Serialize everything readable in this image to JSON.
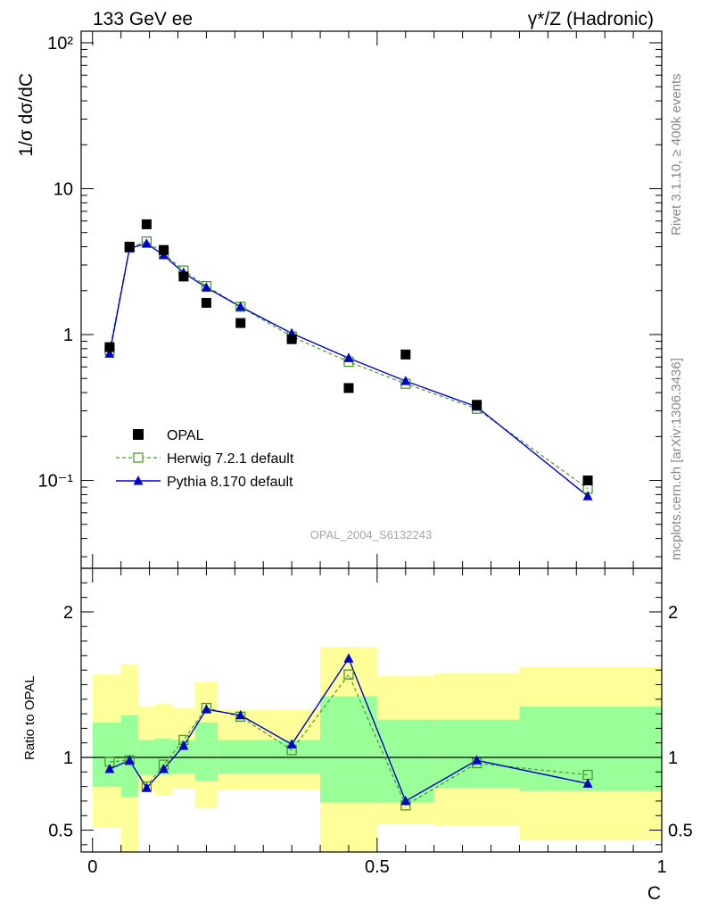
{
  "header": {
    "left": "133 GeV ee",
    "right": "γ*/Z (Hadronic)"
  },
  "side_text": {
    "rivet": "Rivet 3.1.10, ≥ 400k events",
    "mcplots": "mcplots.cern.ch [arXiv:1306.3436]"
  },
  "watermark": "OPAL_2004_S6132243",
  "colors": {
    "data": "#000000",
    "herwig": "#4a9a2a",
    "pythia": "#0000cc",
    "band_outer": "#ffff99",
    "band_inner": "#99ff99"
  },
  "chart_data": [
    {
      "type": "scatter",
      "panel": "main",
      "ylabel": "1/σ dσ/dC",
      "yscale": "log",
      "ylim": [
        0.025,
        120
      ],
      "xlim": [
        -0.02,
        1.0
      ],
      "ytick_labels": [
        "10⁻¹",
        "1",
        "10",
        "10²"
      ],
      "legend": {
        "placement": "bottom-left",
        "entries": [
          "OPAL",
          "Herwig 7.2.1 default",
          "Pythia 8.170 default"
        ]
      },
      "series": [
        {
          "name": "OPAL",
          "style": "markers",
          "x": [
            0.03,
            0.065,
            0.095,
            0.125,
            0.16,
            0.2,
            0.26,
            0.35,
            0.45,
            0.55,
            0.675,
            0.87
          ],
          "y": [
            0.82,
            4.0,
            5.7,
            3.8,
            2.5,
            1.65,
            1.2,
            0.93,
            0.43,
            0.73,
            0.33,
            0.1
          ]
        },
        {
          "name": "Herwig 7.2.1 default",
          "style": "dashed-open-square",
          "x": [
            0.03,
            0.065,
            0.095,
            0.125,
            0.16,
            0.2,
            0.26,
            0.35,
            0.45,
            0.55,
            0.675,
            0.87
          ],
          "y": [
            0.78,
            3.95,
            4.35,
            3.6,
            2.75,
            2.15,
            1.55,
            0.97,
            0.65,
            0.46,
            0.31,
            0.088
          ]
        },
        {
          "name": "Pythia 8.170 default",
          "style": "solid-triangle",
          "x": [
            0.03,
            0.065,
            0.095,
            0.125,
            0.16,
            0.2,
            0.26,
            0.35,
            0.45,
            0.55,
            0.675,
            0.87
          ],
          "y": [
            0.74,
            3.9,
            4.2,
            3.5,
            2.65,
            2.1,
            1.55,
            1.02,
            0.69,
            0.48,
            0.32,
            0.078
          ]
        }
      ]
    },
    {
      "type": "line",
      "panel": "ratio",
      "ylabel": "Ratio to OPAL",
      "xlabel": "C",
      "ylim": [
        0.35,
        2.3
      ],
      "xlim": [
        -0.02,
        1.0
      ],
      "ytick_labels": [
        "0.5",
        "1",
        "2"
      ],
      "xtick_labels": [
        "0",
        "0.5",
        "1"
      ],
      "reference_line": 1,
      "bands": {
        "x_edges": [
          0.0,
          0.05,
          0.08,
          0.11,
          0.14,
          0.18,
          0.22,
          0.4,
          0.5,
          0.6,
          0.75,
          1.0
        ],
        "outer_lo": [
          0.52,
          0.35,
          0.77,
          0.74,
          0.79,
          0.65,
          0.78,
          0.35,
          0.54,
          0.53,
          0.43
        ],
        "outer_hi": [
          1.57,
          1.64,
          1.35,
          1.37,
          1.34,
          1.52,
          1.33,
          1.76,
          1.56,
          1.58,
          1.62
        ],
        "inner_lo": [
          0.8,
          0.73,
          0.88,
          0.88,
          0.89,
          0.84,
          0.89,
          0.69,
          0.69,
          0.79,
          0.77
        ],
        "inner_hi": [
          1.24,
          1.29,
          1.12,
          1.13,
          1.12,
          1.24,
          1.12,
          1.42,
          1.26,
          1.26,
          1.35
        ]
      },
      "series": [
        {
          "name": "Herwig 7.2.1 default",
          "x": [
            0.03,
            0.065,
            0.095,
            0.125,
            0.16,
            0.2,
            0.26,
            0.35,
            0.45,
            0.55,
            0.675,
            0.87
          ],
          "y": [
            0.97,
            0.98,
            0.8,
            0.95,
            1.12,
            1.34,
            1.28,
            1.05,
            1.57,
            0.67,
            0.96,
            0.88
          ]
        },
        {
          "name": "Pythia 8.170 default",
          "x": [
            0.03,
            0.065,
            0.095,
            0.125,
            0.16,
            0.2,
            0.26,
            0.35,
            0.45,
            0.55,
            0.675,
            0.87
          ],
          "y": [
            0.92,
            0.98,
            0.79,
            0.92,
            1.08,
            1.33,
            1.29,
            1.09,
            1.68,
            0.7,
            0.98,
            0.82
          ]
        }
      ]
    }
  ]
}
